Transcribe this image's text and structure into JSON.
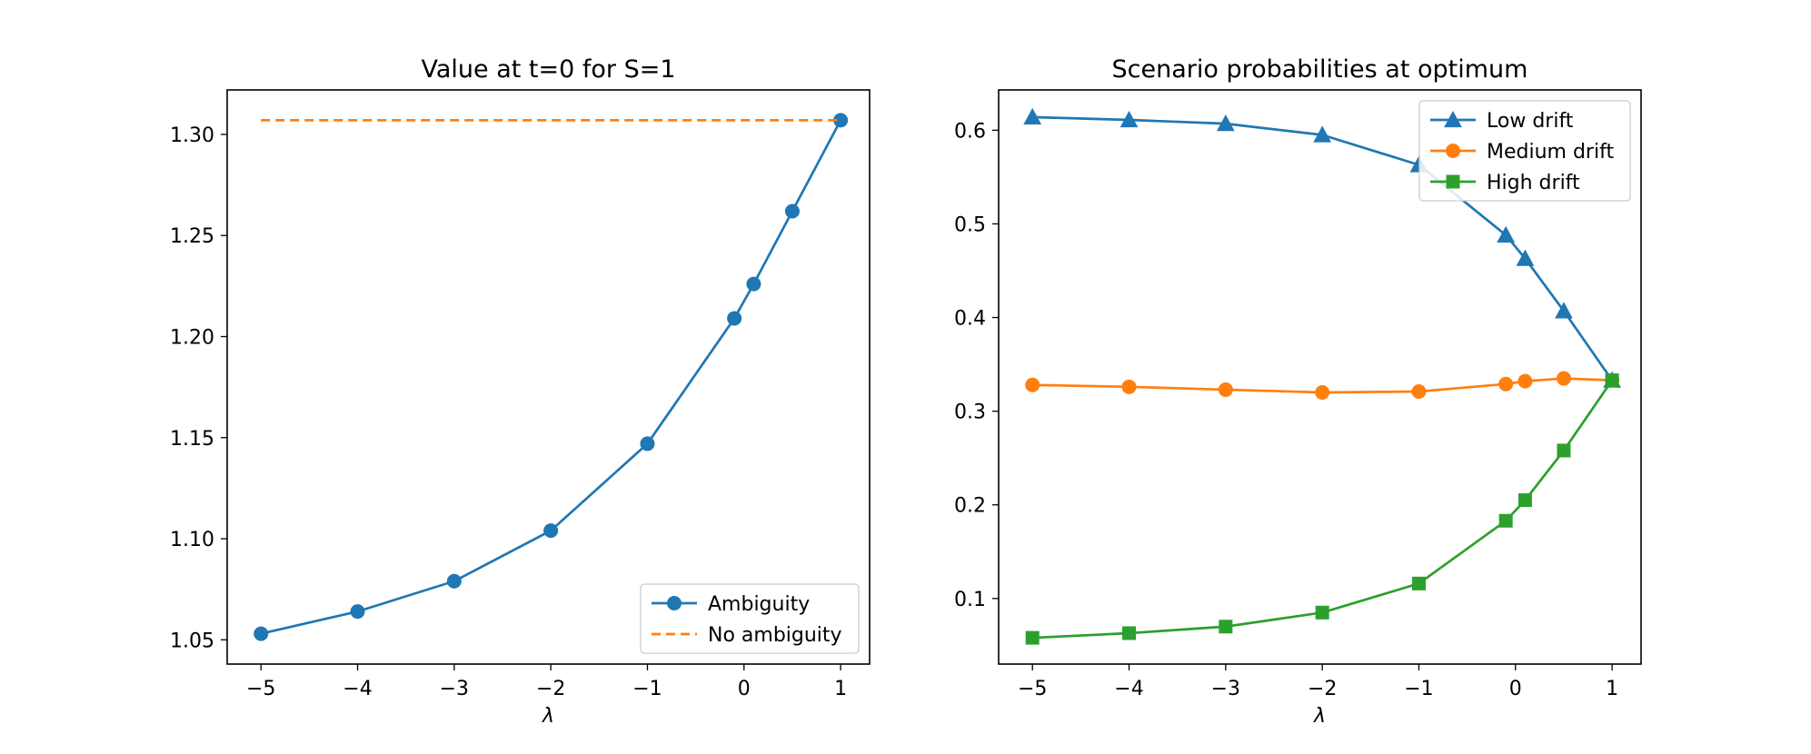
{
  "chart_data": [
    {
      "type": "line",
      "title": "Value at t=0 for S=1",
      "xlabel": "λ",
      "ylabel": "",
      "xlim": [
        -5.35,
        1.3
      ],
      "ylim": [
        1.038,
        1.322
      ],
      "xticks": [
        -5,
        -4,
        -3,
        -2,
        -1,
        0,
        1
      ],
      "xtick_labels": [
        "−5",
        "−4",
        "−3",
        "−2",
        "−1",
        "0",
        "1"
      ],
      "yticks": [
        1.05,
        1.1,
        1.15,
        1.2,
        1.25,
        1.3
      ],
      "ytick_labels": [
        "1.05",
        "1.10",
        "1.15",
        "1.20",
        "1.25",
        "1.30"
      ],
      "grid": false,
      "legend_position": "lower-right",
      "series": [
        {
          "name": "Ambiguity",
          "color": "#1f77b4",
          "marker": "circle",
          "line_style": "solid",
          "x": [
            -5,
            -4,
            -3,
            -2,
            -1,
            -0.1,
            0.1,
            0.5,
            1
          ],
          "values": [
            1.053,
            1.064,
            1.079,
            1.104,
            1.147,
            1.209,
            1.226,
            1.262,
            1.307
          ]
        },
        {
          "name": "No ambiguity",
          "color": "#ff7f0e",
          "marker": "none",
          "line_style": "dashed",
          "x": [
            -5,
            1
          ],
          "values": [
            1.307,
            1.307
          ]
        }
      ]
    },
    {
      "type": "line",
      "title": "Scenario probabilities at optimum",
      "xlabel": "λ",
      "ylabel": "",
      "xlim": [
        -5.35,
        1.3
      ],
      "ylim": [
        0.03,
        0.643
      ],
      "xticks": [
        -5,
        -4,
        -3,
        -2,
        -1,
        0,
        1
      ],
      "xtick_labels": [
        "−5",
        "−4",
        "−3",
        "−2",
        "−1",
        "0",
        "1"
      ],
      "yticks": [
        0.1,
        0.2,
        0.3,
        0.4,
        0.5,
        0.6
      ],
      "ytick_labels": [
        "0.1",
        "0.2",
        "0.3",
        "0.4",
        "0.5",
        "0.6"
      ],
      "grid": false,
      "legend_position": "upper-right",
      "series": [
        {
          "name": "Low drift",
          "color": "#1f77b4",
          "marker": "triangle",
          "x": [
            -5,
            -4,
            -3,
            -2,
            -1,
            -0.1,
            0.1,
            0.5,
            1
          ],
          "values": [
            0.614,
            0.611,
            0.607,
            0.595,
            0.563,
            0.488,
            0.463,
            0.407,
            0.333
          ]
        },
        {
          "name": "Medium drift",
          "color": "#ff7f0e",
          "marker": "circle",
          "x": [
            -5,
            -4,
            -3,
            -2,
            -1,
            -0.1,
            0.1,
            0.5,
            1
          ],
          "values": [
            0.328,
            0.326,
            0.323,
            0.32,
            0.321,
            0.329,
            0.332,
            0.335,
            0.333
          ]
        },
        {
          "name": "High drift",
          "color": "#2ca02c",
          "marker": "square",
          "x": [
            -5,
            -4,
            -3,
            -2,
            -1,
            -0.1,
            0.1,
            0.5,
            1
          ],
          "values": [
            0.058,
            0.063,
            0.07,
            0.085,
            0.116,
            0.183,
            0.205,
            0.258,
            0.333
          ]
        }
      ]
    }
  ]
}
